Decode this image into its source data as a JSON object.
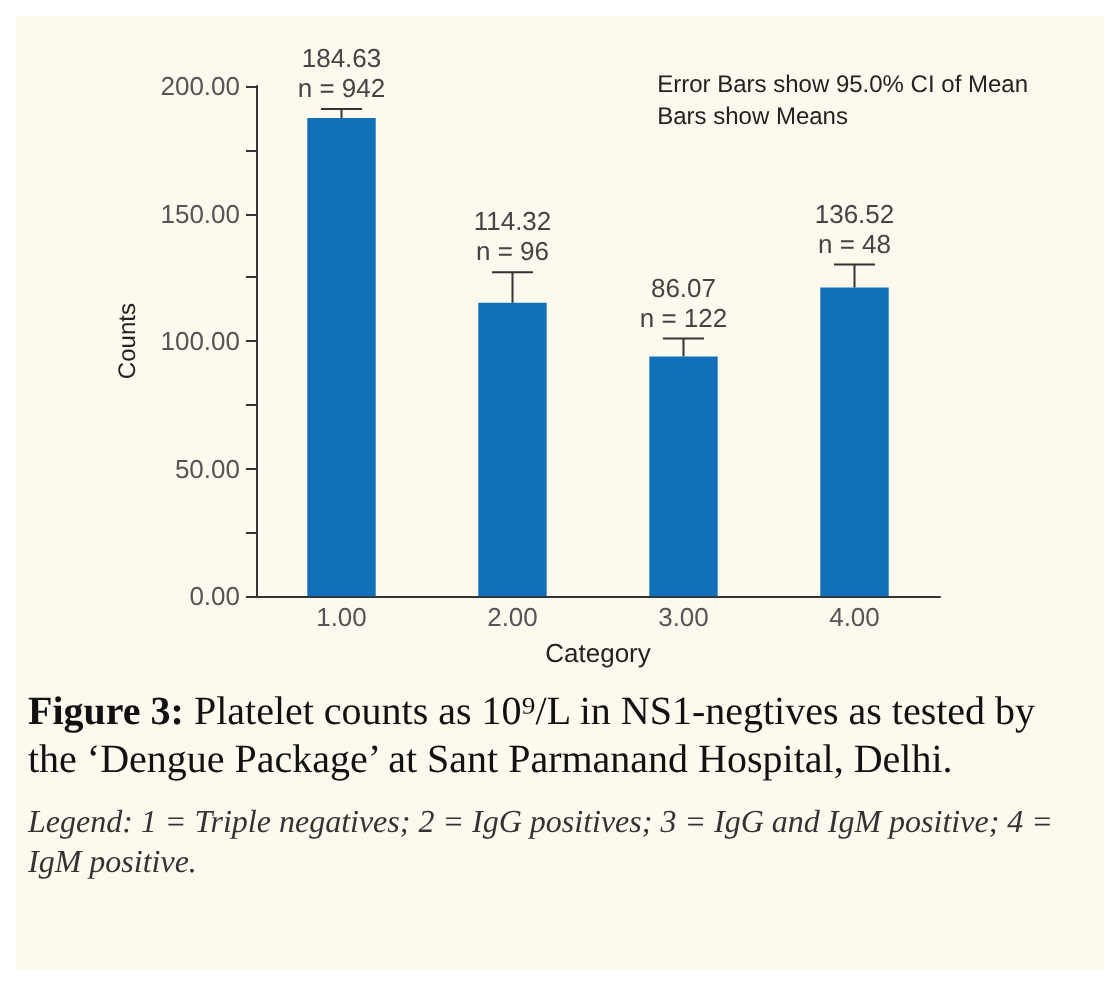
{
  "chart_data": {
    "type": "bar",
    "xlabel": "Category",
    "ylabel": "Counts",
    "categories": [
      "1.00",
      "2.00",
      "3.00",
      "4.00"
    ],
    "values": [
      187.5,
      115,
      94,
      121
    ],
    "errors": [
      [
        187.5,
        191
      ],
      [
        115,
        127
      ],
      [
        94,
        101
      ],
      [
        121,
        130
      ]
    ],
    "color": "#1170b8",
    "ylim": [
      0,
      200
    ],
    "yticks": [
      {
        "value": 0,
        "label": "0.00"
      },
      {
        "value": 25,
        "label": null
      },
      {
        "value": 50,
        "label": "50.00"
      },
      {
        "value": 75,
        "label": null
      },
      {
        "value": 100,
        "label": "100.00"
      },
      {
        "value": 125,
        "label": null
      },
      {
        "value": 150,
        "label": "150.00"
      },
      {
        "value": 175,
        "label": null
      },
      {
        "value": 200,
        "label": "200.00"
      }
    ],
    "grid": false,
    "annotations": [
      "Error Bars show 95.0% CI of Mean",
      "Bars show Means",
      "Figure 3:",
      "Platelet counts as 10⁹/L in NS1-negtives as tested by the ‘Dengue Package’ at Sant Parmanand Hospital, Delhi.",
      "Legend: 1 = Triple negatives; 2 = IgG positives; 3 = IgG and IgM positive; 4 = IgM positive.",
      {
        "text": "184.63\nn = 942",
        "x": "1.00",
        "y": 191
      },
      {
        "text": "114.32\nn = 96",
        "x": "2.00",
        "y": 127
      },
      {
        "text": "86.07\nn = 122",
        "x": "3.00",
        "y": 101
      },
      {
        "text": "136.52\nn = 48",
        "x": "4.00",
        "y": 130
      }
    ]
  }
}
